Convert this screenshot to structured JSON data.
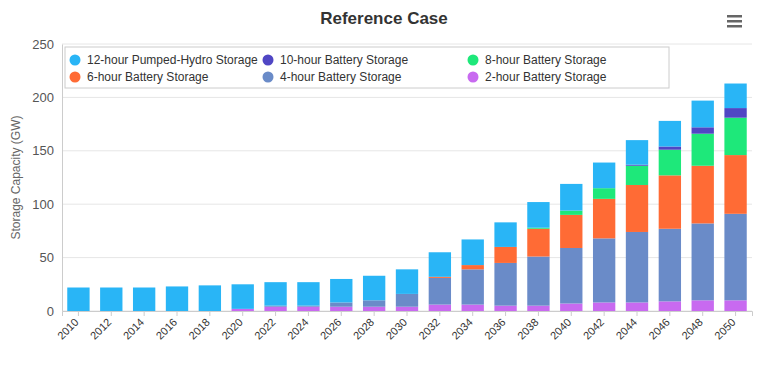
{
  "chart_data": {
    "type": "bar",
    "title": "Reference Case",
    "y_label": "Storage Capacity (GW)",
    "stacked": true,
    "grid": true,
    "legend": "top",
    "categories": [
      "2010",
      "2012",
      "2014",
      "2016",
      "2018",
      "2020",
      "2022",
      "2024",
      "2026",
      "2028",
      "2030",
      "2032",
      "2034",
      "2036",
      "2038",
      "2040",
      "2042",
      "2044",
      "2046",
      "2048",
      "2050"
    ],
    "ylim": [
      0,
      250
    ],
    "yticks": [
      0,
      50,
      100,
      150,
      200,
      250
    ],
    "series": [
      {
        "name": "12-hour Pumped-Hydro Storage",
        "color": "#29b5f6",
        "values": [
          22,
          22,
          22,
          23,
          24,
          23,
          22,
          22,
          22,
          23,
          23,
          23,
          24,
          23,
          24,
          25,
          24,
          23,
          24,
          25,
          23
        ]
      },
      {
        "name": "10-hour Battery Storage",
        "color": "#5046c4",
        "values": [
          0,
          0,
          0,
          0,
          0,
          0,
          0,
          0,
          0,
          0,
          0,
          0,
          0,
          0,
          0,
          0,
          0,
          1,
          3,
          6,
          9
        ]
      },
      {
        "name": "8-hour Battery Storage",
        "color": "#1ee87a",
        "values": [
          0,
          0,
          0,
          0,
          0,
          0,
          0,
          0,
          0,
          0,
          0,
          0,
          0,
          0,
          1,
          4,
          10,
          18,
          24,
          30,
          35
        ]
      },
      {
        "name": "6-hour Battery Storage",
        "color": "#ff6b35",
        "values": [
          0,
          0,
          0,
          0,
          0,
          0,
          0,
          0,
          0,
          0,
          0,
          1,
          4,
          15,
          26,
          31,
          37,
          44,
          50,
          54,
          55
        ]
      },
      {
        "name": "4-hour Battery Storage",
        "color": "#6a8bc8",
        "values": [
          0,
          0,
          0,
          0,
          0,
          0,
          1,
          1,
          4,
          6,
          12,
          25,
          33,
          40,
          46,
          52,
          60,
          66,
          68,
          72,
          81
        ]
      },
      {
        "name": "2-hour Battery Storage",
        "color": "#c86af0",
        "values": [
          0,
          0,
          0,
          0,
          0,
          2,
          4,
          4,
          4,
          4,
          4,
          6,
          6,
          5,
          5,
          7,
          8,
          8,
          9,
          10,
          10
        ]
      }
    ]
  }
}
